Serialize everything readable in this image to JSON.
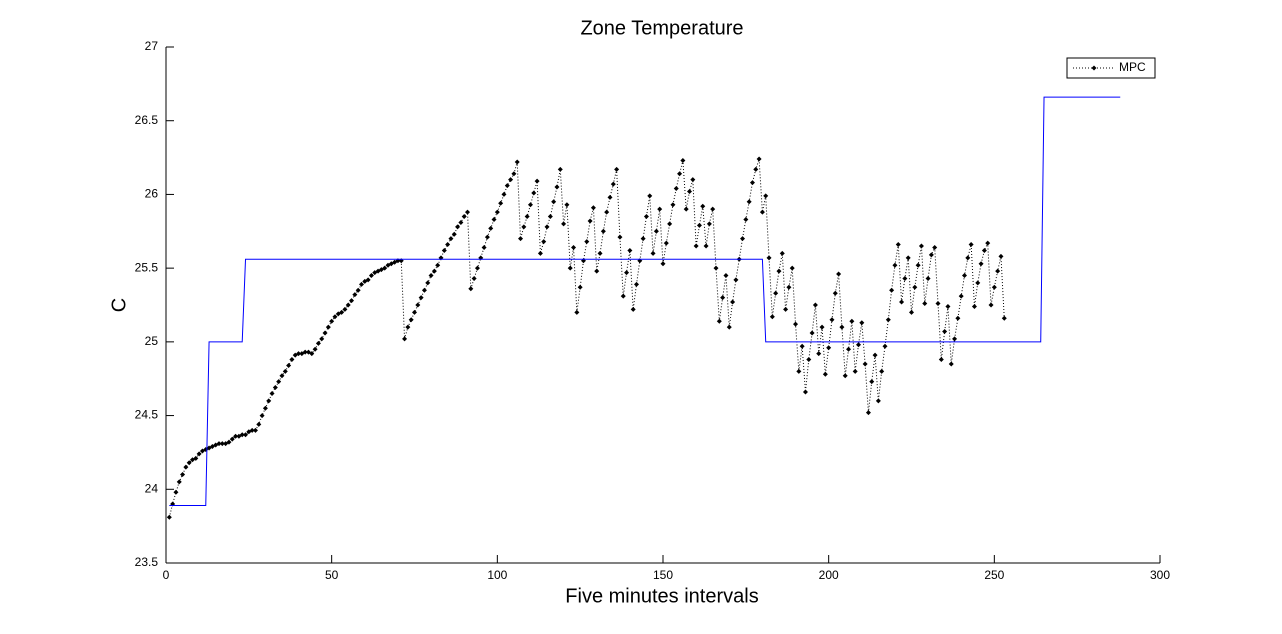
{
  "chart_data": {
    "type": "line",
    "title": "Zone Temperature",
    "x_label": "Five minutes intervals",
    "y_label": "C",
    "xlim": [
      0,
      300
    ],
    "xticks": [
      0,
      50,
      100,
      150,
      200,
      250,
      300
    ],
    "ylim": [
      23.5,
      27
    ],
    "yticks": [
      23.5,
      24,
      24.5,
      25,
      25.5,
      26,
      26.5,
      27
    ],
    "legend": "upper right",
    "series": [
      {
        "name": "MPC",
        "color": "#000000",
        "line_style": "dotted",
        "marker": "diamond",
        "x": [
          1,
          2,
          3,
          4,
          5,
          6,
          7,
          8,
          9,
          10,
          11,
          12,
          13,
          14,
          15,
          16,
          17,
          18,
          19,
          20,
          21,
          22,
          23,
          24,
          25,
          26,
          27,
          28,
          29,
          30,
          31,
          32,
          33,
          34,
          35,
          36,
          37,
          38,
          39,
          40,
          41,
          42,
          43,
          44,
          45,
          46,
          47,
          48,
          49,
          50,
          51,
          52,
          53,
          54,
          55,
          56,
          57,
          58,
          59,
          60,
          61,
          62,
          63,
          64,
          65,
          66,
          67,
          68,
          69,
          70,
          71,
          72,
          73,
          74,
          75,
          76,
          77,
          78,
          79,
          80,
          81,
          82,
          83,
          84,
          85,
          86,
          87,
          88,
          89,
          90,
          91,
          92,
          93,
          94,
          95,
          96,
          97,
          98,
          99,
          100,
          101,
          102,
          103,
          104,
          105,
          106,
          107,
          108,
          109,
          110,
          111,
          112,
          113,
          114,
          115,
          116,
          117,
          118,
          119,
          120,
          121,
          122,
          123,
          124,
          125,
          126,
          127,
          128,
          129,
          130,
          131,
          132,
          133,
          134,
          135,
          136,
          137,
          138,
          139,
          140,
          141,
          142,
          143,
          144,
          145,
          146,
          147,
          148,
          149,
          150,
          151,
          152,
          153,
          154,
          155,
          156,
          157,
          158,
          159,
          160,
          161,
          162,
          163,
          164,
          165,
          166,
          167,
          168,
          169,
          170,
          171,
          172,
          173,
          174,
          175,
          176,
          177,
          178,
          179,
          180,
          181,
          182,
          183,
          184,
          185,
          186,
          187,
          188,
          189,
          190,
          191,
          192,
          193,
          194,
          195,
          196,
          197,
          198,
          199,
          200,
          201,
          202,
          203,
          204,
          205,
          206,
          207,
          208,
          209,
          210,
          211,
          212,
          213,
          214,
          215,
          216,
          217,
          218,
          219,
          220,
          221,
          222,
          223,
          224,
          225,
          226,
          227,
          228,
          229,
          230,
          231,
          232,
          233,
          234,
          235,
          236,
          237,
          238,
          239,
          240,
          241,
          242,
          243,
          244,
          245,
          246,
          247,
          248,
          249,
          250,
          251,
          252,
          253
        ],
        "values": [
          23.81,
          23.9,
          23.98,
          24.05,
          24.1,
          24.15,
          24.18,
          24.2,
          24.21,
          24.24,
          24.26,
          24.27,
          24.28,
          24.29,
          24.3,
          24.31,
          24.31,
          24.31,
          24.32,
          24.34,
          24.36,
          24.36,
          24.37,
          24.37,
          24.39,
          24.4,
          24.4,
          24.44,
          24.5,
          24.55,
          24.6,
          24.65,
          24.69,
          24.73,
          24.77,
          24.8,
          24.84,
          24.88,
          24.91,
          24.92,
          24.92,
          24.93,
          24.93,
          24.92,
          24.95,
          24.99,
          25.02,
          25.06,
          25.1,
          25.14,
          25.17,
          25.19,
          25.2,
          25.22,
          25.25,
          25.28,
          25.32,
          25.35,
          25.39,
          25.41,
          25.42,
          25.45,
          25.47,
          25.48,
          25.49,
          25.5,
          25.52,
          25.53,
          25.54,
          25.55,
          25.55,
          25.02,
          25.1,
          25.15,
          25.2,
          25.25,
          25.3,
          25.35,
          25.4,
          25.45,
          25.48,
          25.52,
          25.57,
          25.62,
          25.66,
          25.7,
          25.73,
          25.78,
          25.81,
          25.85,
          25.88,
          25.36,
          25.43,
          25.5,
          25.57,
          25.64,
          25.71,
          25.77,
          25.83,
          25.88,
          25.94,
          26.0,
          26.06,
          26.1,
          26.14,
          26.22,
          25.7,
          25.78,
          25.85,
          25.93,
          26.01,
          26.09,
          25.6,
          25.68,
          25.78,
          25.85,
          25.95,
          26.05,
          26.17,
          25.8,
          25.93,
          25.5,
          25.64,
          25.2,
          25.37,
          25.55,
          25.68,
          25.82,
          25.91,
          25.48,
          25.6,
          25.75,
          25.88,
          25.98,
          26.07,
          26.17,
          25.71,
          25.31,
          25.47,
          25.62,
          25.22,
          25.39,
          25.55,
          25.7,
          25.85,
          25.99,
          25.6,
          25.75,
          25.9,
          25.53,
          25.67,
          25.8,
          25.93,
          26.04,
          26.14,
          26.23,
          25.9,
          26.02,
          26.1,
          25.65,
          25.79,
          25.92,
          25.65,
          25.8,
          25.9,
          25.5,
          25.14,
          25.3,
          25.45,
          25.1,
          25.27,
          25.42,
          25.56,
          25.7,
          25.83,
          25.95,
          26.08,
          26.17,
          26.24,
          25.88,
          25.99,
          25.57,
          25.17,
          25.33,
          25.48,
          25.6,
          25.22,
          25.37,
          25.5,
          25.12,
          24.8,
          24.97,
          24.66,
          24.88,
          25.06,
          25.25,
          24.92,
          25.1,
          24.78,
          24.96,
          25.15,
          25.33,
          25.46,
          25.1,
          24.77,
          24.95,
          25.14,
          24.8,
          24.98,
          25.13,
          24.85,
          24.52,
          24.73,
          24.91,
          24.6,
          24.8,
          24.97,
          25.15,
          25.35,
          25.52,
          25.66,
          25.27,
          25.43,
          25.57,
          25.2,
          25.37,
          25.52,
          25.65,
          25.26,
          25.43,
          25.59,
          25.64,
          25.26,
          24.88,
          25.07,
          25.24,
          24.85,
          25.02,
          25.16,
          25.31,
          25.45,
          25.57,
          25.66,
          25.24,
          25.4,
          25.53,
          25.62,
          25.67,
          25.25,
          25.37,
          25.48,
          25.58,
          25.16
        ]
      },
      {
        "color": "#0000ff",
        "line_style": "solid",
        "x": [
          1,
          12,
          13,
          23,
          24,
          180,
          181,
          264,
          265,
          288
        ],
        "values": [
          23.89,
          23.89,
          25,
          25,
          25.56,
          25.56,
          25,
          25,
          26.66,
          26.66
        ]
      }
    ]
  }
}
